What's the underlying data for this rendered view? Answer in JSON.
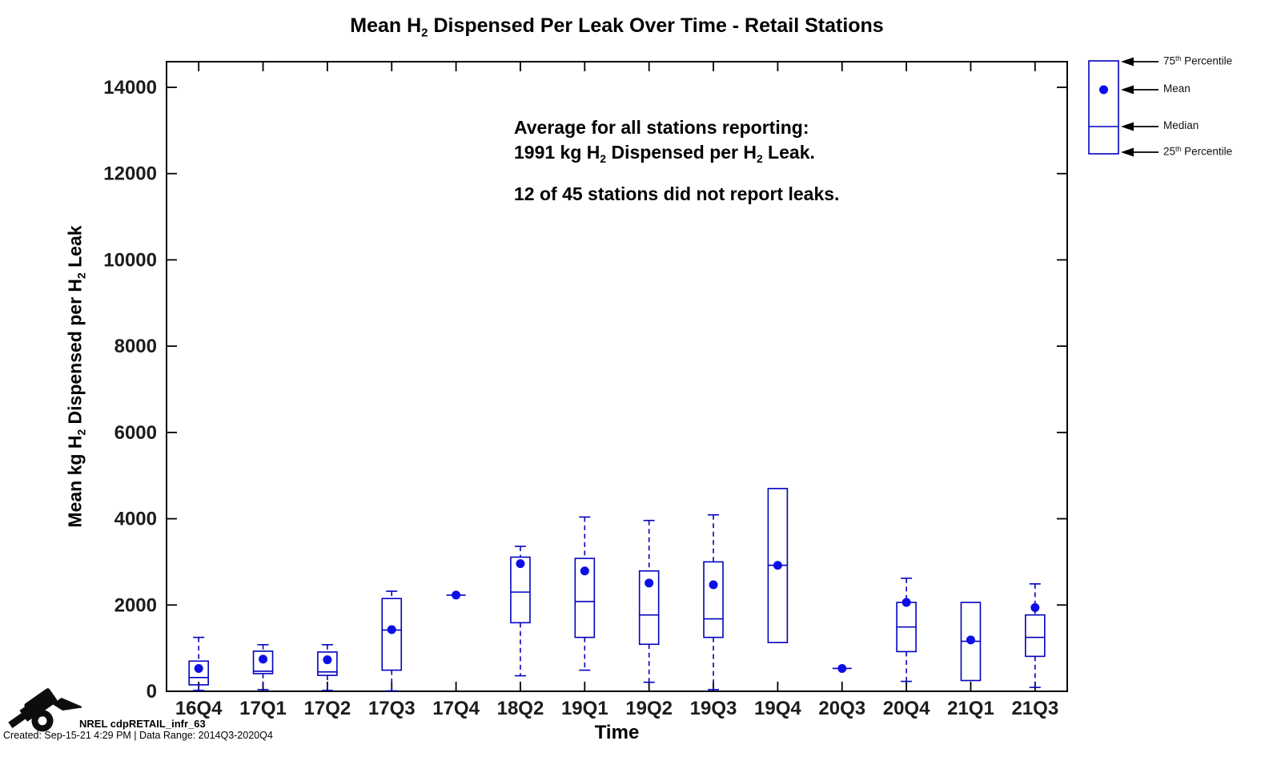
{
  "title": {
    "p1": "Mean H",
    "s1": "2",
    "p2": " Dispensed Per Leak Over Time - Retail Stations"
  },
  "axes": {
    "xlabel": "Time",
    "ylabel": {
      "p1": "Mean kg H",
      "s1": "2",
      "p2": " Dispensed per H",
      "s2": "2",
      "p3": " Leak"
    }
  },
  "annotation": {
    "line1": "Average for all stations reporting:",
    "line2": {
      "p1": "1991 kg H",
      "s1": "2",
      "p2": " Dispensed per H",
      "s2": "2",
      "p3": " Leak."
    },
    "line3": "12 of 45 stations did not report leaks."
  },
  "legend": {
    "items": [
      {
        "pre": "75",
        "sup": "th",
        "post": " Percentile"
      },
      {
        "pre": "Mean",
        "sup": "",
        "post": ""
      },
      {
        "pre": "Median",
        "sup": "",
        "post": ""
      },
      {
        "pre": "25",
        "sup": "th",
        "post": " Percentile"
      }
    ]
  },
  "footer": {
    "figure_id": "NREL cdpRETAIL_infr_63",
    "created": "Created: Sep-15-21  4:29 PM | Data Range: 2014Q3-2020Q4"
  },
  "colors": {
    "box_stroke": "#0202be",
    "mean_fill": "#0d0de8",
    "axis": "#000000",
    "tick_label_color": "#1c1c1c"
  },
  "chart_data": {
    "type": "boxplot",
    "title": "Mean H2 Dispensed Per Leak Over Time - Retail Stations",
    "xlabel": "Time",
    "ylabel": "Mean kg H2 Dispensed per H2 Leak",
    "ylim": [
      0,
      14600
    ],
    "yticks": [
      0,
      2000,
      4000,
      6000,
      8000,
      10000,
      12000,
      14000
    ],
    "grid": false,
    "legend_position": "top-right-outside",
    "categories": [
      "16Q4",
      "17Q1",
      "17Q2",
      "17Q3",
      "17Q4",
      "18Q2",
      "19Q1",
      "19Q2",
      "19Q3",
      "19Q4",
      "20Q3",
      "20Q4",
      "21Q1",
      "21Q3"
    ],
    "boxes": [
      {
        "label": "16Q4",
        "whisker_low": 20,
        "q1": 150,
        "median": 320,
        "mean": 530,
        "q3": 700,
        "whisker_high": 1250
      },
      {
        "label": "17Q1",
        "whisker_low": 40,
        "q1": 410,
        "median": 465,
        "mean": 745,
        "q3": 930,
        "whisker_high": 1080
      },
      {
        "label": "17Q2",
        "whisker_low": 20,
        "q1": 370,
        "median": 450,
        "mean": 730,
        "q3": 910,
        "whisker_high": 1080
      },
      {
        "label": "17Q3",
        "whisker_low": 10,
        "q1": 490,
        "median": 1420,
        "mean": 1430,
        "q3": 2150,
        "whisker_high": 2320
      },
      {
        "label": "17Q4",
        "whisker_low": null,
        "q1": 2230,
        "median": 2230,
        "mean": 2230,
        "q3": 2230,
        "whisker_high": null
      },
      {
        "label": "18Q2",
        "whisker_low": 360,
        "q1": 1590,
        "median": 2300,
        "mean": 2960,
        "q3": 3110,
        "whisker_high": 3360
      },
      {
        "label": "19Q1",
        "whisker_low": 490,
        "q1": 1250,
        "median": 2080,
        "mean": 2790,
        "q3": 3080,
        "whisker_high": 4040
      },
      {
        "label": "19Q2",
        "whisker_low": 210,
        "q1": 1090,
        "median": 1770,
        "mean": 2510,
        "q3": 2790,
        "whisker_high": 3960
      },
      {
        "label": "19Q3",
        "whisker_low": 40,
        "q1": 1250,
        "median": 1680,
        "mean": 2470,
        "q3": 3000,
        "whisker_high": 4090
      },
      {
        "label": "19Q4",
        "whisker_low": null,
        "q1": 1130,
        "median": 2920,
        "mean": 2920,
        "q3": 4700,
        "whisker_high": null
      },
      {
        "label": "20Q3",
        "whisker_low": null,
        "q1": 530,
        "median": 530,
        "mean": 530,
        "q3": 530,
        "whisker_high": null
      },
      {
        "label": "20Q4",
        "whisker_low": 230,
        "q1": 920,
        "median": 1490,
        "mean": 2060,
        "q3": 2060,
        "whisker_high": 2620
      },
      {
        "label": "21Q1",
        "whisker_low": null,
        "q1": 250,
        "median": 1160,
        "mean": 1190,
        "q3": 2060,
        "whisker_high": null
      },
      {
        "label": "21Q3",
        "whisker_low": 90,
        "q1": 810,
        "median": 1250,
        "mean": 1940,
        "q3": 1770,
        "whisker_high": 2490
      }
    ]
  }
}
